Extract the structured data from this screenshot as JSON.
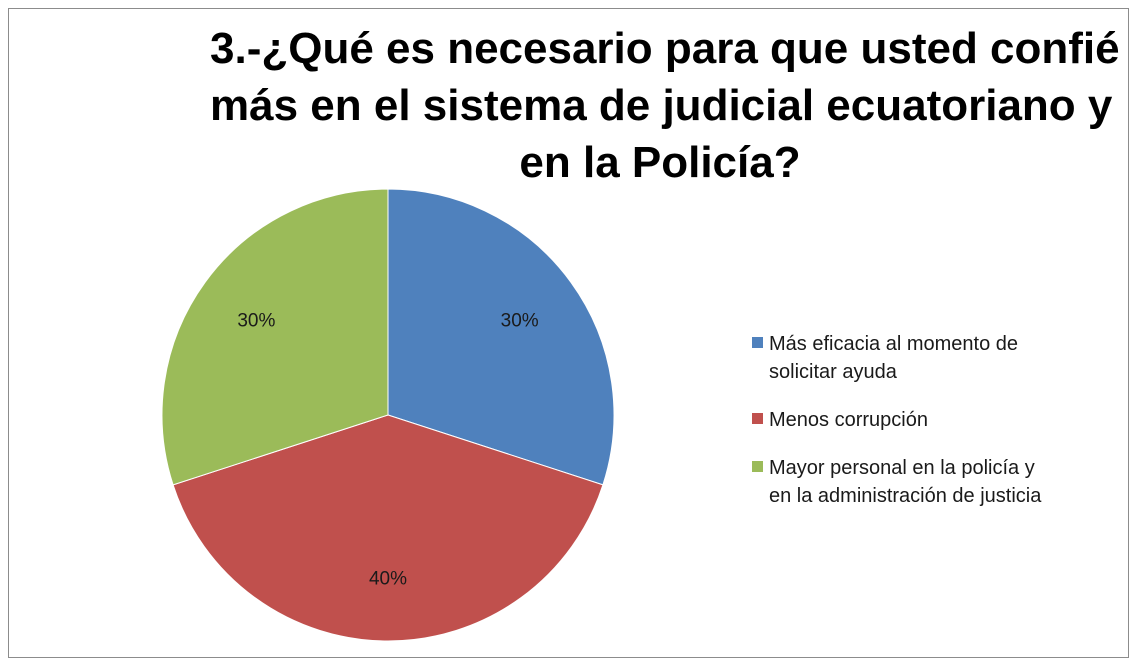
{
  "chart_data": {
    "type": "pie",
    "title_lines": [
      "3.-¿Qué es necesario  para que usted confié",
      "más en el sistema de judicial ecuatoriano y",
      "en la Policía?"
    ],
    "categories": [
      "Más eficacia  al momento de solicitar ayuda",
      "Menos corrupción",
      "Mayor personal en la policía  y en la administración de justicia"
    ],
    "values": [
      30,
      40,
      30
    ],
    "data_labels": [
      "30%",
      "40%",
      "30%"
    ],
    "colors": [
      "#4f81bd",
      "#c0504d",
      "#9bbb59"
    ],
    "legend_position": "right"
  },
  "legend": [
    {
      "line1": "Más eficacia  al momento de",
      "line2": "solicitar ayuda",
      "color": "#4f81bd"
    },
    {
      "line1": "Menos corrupción",
      "line2": "",
      "color": "#c0504d"
    },
    {
      "line1": "Mayor personal en la policía  y",
      "line2": "en la administración de justicia",
      "color": "#9bbb59"
    }
  ]
}
